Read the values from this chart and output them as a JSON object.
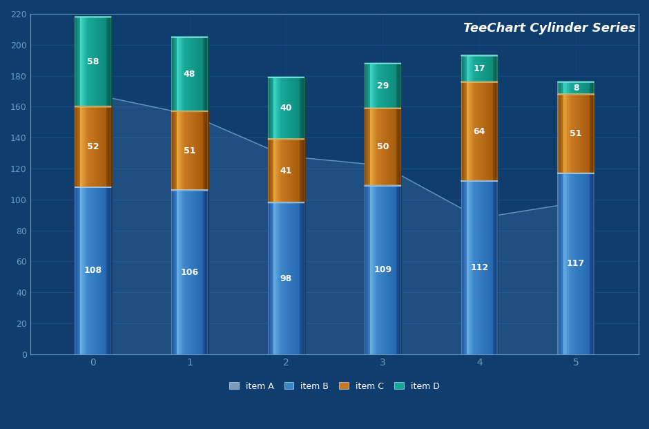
{
  "title": "TeeChart Cylinder Series",
  "background_color": "#0e3d6e",
  "plot_bg_color": "#0e3d6e",
  "axis_color": "#6a9fc0",
  "grid_color": "#1b5590",
  "text_color": "#ffffff",
  "ylim": [
    0,
    220
  ],
  "yticks": [
    0,
    20,
    40,
    60,
    80,
    100,
    120,
    140,
    160,
    180,
    200,
    220
  ],
  "categories": [
    0,
    1,
    2,
    3,
    4,
    5
  ],
  "series": {
    "item_A": [
      108,
      106,
      98,
      109,
      112,
      117
    ],
    "item_B": [
      52,
      51,
      41,
      50,
      64,
      51
    ],
    "item_C": [
      58,
      48,
      40,
      29,
      17,
      8
    ],
    "item_D_area": [
      168,
      155,
      128,
      122,
      88,
      98
    ]
  },
  "colors": {
    "item_A_main": "#3a85c8",
    "item_A_light": "#6ab0e8",
    "item_A_dark": "#1a55a0",
    "item_A_edge": "#aad4f8",
    "item_B_main": "#c87820",
    "item_B_light": "#e8a840",
    "item_B_dark": "#904a00",
    "item_B_edge": "#f0c070",
    "item_C_main": "#18a898",
    "item_C_light": "#40d8c8",
    "item_C_dark": "#087868",
    "item_C_edge": "#80e8e0",
    "area_fill": "#4a80b0",
    "area_line": "#80b8d8",
    "rim_color": "#d0ecff"
  },
  "legend": {
    "labels": [
      "item A",
      "item B",
      "item C",
      "item D"
    ],
    "colors": [
      "#7a9ab8",
      "#3a85c8",
      "#c87820",
      "#18a898"
    ]
  },
  "bar_width": 0.38,
  "figsize": [
    9.4,
    6.21
  ],
  "dpi": 100,
  "title_fontsize": 13,
  "label_fontsize": 9
}
